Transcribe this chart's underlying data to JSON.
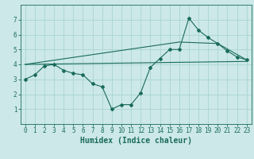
{
  "title": "",
  "xlabel": "Humidex (Indice chaleur)",
  "ylabel": "",
  "background_color": "#cce8e8",
  "grid_color": "#aad4d4",
  "line_color": "#1a6b5a",
  "xlim": [
    -0.5,
    23.5
  ],
  "ylim": [
    0,
    8
  ],
  "xticks": [
    0,
    1,
    2,
    3,
    4,
    5,
    6,
    7,
    8,
    9,
    10,
    11,
    12,
    13,
    14,
    15,
    16,
    17,
    18,
    19,
    20,
    21,
    22,
    23
  ],
  "yticks": [
    1,
    2,
    3,
    4,
    5,
    6,
    7
  ],
  "line1_x": [
    0,
    1,
    2,
    3,
    4,
    5,
    6,
    7,
    8,
    9,
    10,
    11,
    12,
    13,
    14,
    15,
    16,
    17,
    18,
    19,
    20,
    21,
    22,
    23
  ],
  "line1_y": [
    3.0,
    3.3,
    3.9,
    4.0,
    3.6,
    3.4,
    3.3,
    2.7,
    2.5,
    1.0,
    1.3,
    1.3,
    2.1,
    3.8,
    4.4,
    5.0,
    5.0,
    7.1,
    6.3,
    5.8,
    5.4,
    4.9,
    4.5,
    4.3
  ],
  "line2_x": [
    0,
    23
  ],
  "line2_y": [
    4.0,
    4.2
  ],
  "line3_x": [
    0,
    16,
    20,
    23
  ],
  "line3_y": [
    4.0,
    5.5,
    5.4,
    4.3
  ],
  "font_family": "monospace",
  "tick_fontsize": 5.5,
  "xlabel_fontsize": 7
}
